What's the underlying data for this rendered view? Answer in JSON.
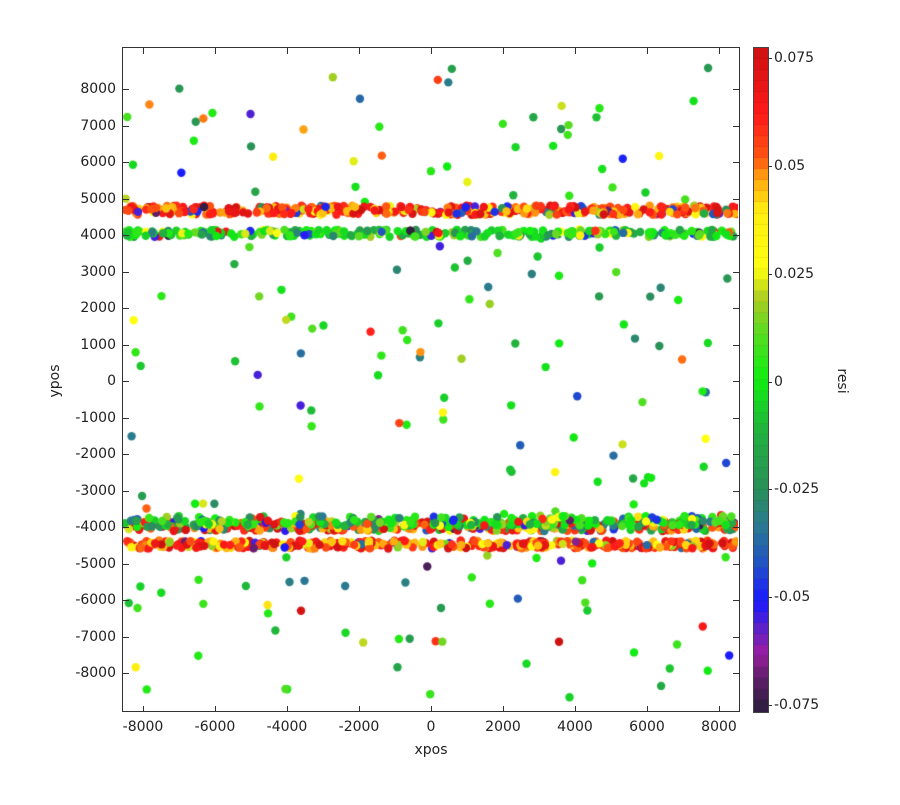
{
  "chart_data": {
    "type": "scatter",
    "title": "",
    "xlabel": "xpos",
    "ylabel": "ypos",
    "colorbar_label": "resi",
    "xlim": [
      -8800,
      8800
    ],
    "ylim": [
      -8900,
      8700
    ],
    "xticks": [
      -8000,
      -6000,
      -4000,
      -2000,
      0,
      2000,
      4000,
      6000,
      8000
    ],
    "yticks": [
      8000,
      7000,
      6000,
      5000,
      4000,
      3000,
      2000,
      1000,
      0,
      -1000,
      -2000,
      -3000,
      -4000,
      -5000,
      -6000,
      -7000,
      -8000
    ],
    "xtick_labels": [
      "-8000",
      "-6000",
      "-4000",
      "-2000",
      "0",
      "2000",
      "4000",
      "6000",
      "8000"
    ],
    "ytick_labels": [
      "8000",
      "7000",
      "6000",
      "5000",
      "4000",
      "3000",
      "2000",
      "1000",
      "0",
      "-1000",
      "-2000",
      "-3000",
      "-4000",
      "-5000",
      "-6000",
      "-7000",
      "-8000"
    ],
    "colorbar": {
      "range": [
        -0.075,
        0.075
      ],
      "ticks": [
        0.075,
        0.05,
        0.025,
        0,
        -0.025,
        -0.05,
        -0.075
      ],
      "tick_labels": [
        "0.075",
        "0.05",
        "0.025",
        "0",
        "-0.025",
        "-0.05",
        "-0.075"
      ],
      "colormap_stops": [
        {
          "v": -0.075,
          "color": "#2a1f3d"
        },
        {
          "v": -0.068,
          "color": "#5a1f66"
        },
        {
          "v": -0.062,
          "color": "#9a1fa0"
        },
        {
          "v": -0.056,
          "color": "#5a22cc"
        },
        {
          "v": -0.05,
          "color": "#1a1aff"
        },
        {
          "v": -0.042,
          "color": "#2050c8"
        },
        {
          "v": -0.033,
          "color": "#2a7a90"
        },
        {
          "v": -0.025,
          "color": "#2a8f5a"
        },
        {
          "v": -0.012,
          "color": "#22b040"
        },
        {
          "v": 0,
          "color": "#11ee11"
        },
        {
          "v": 0.01,
          "color": "#55dd22"
        },
        {
          "v": 0.018,
          "color": "#aacc22"
        },
        {
          "v": 0.025,
          "color": "#ffff11"
        },
        {
          "v": 0.038,
          "color": "#ffee11"
        },
        {
          "v": 0.045,
          "color": "#ffaa11"
        },
        {
          "v": 0.05,
          "color": "#ff5511"
        },
        {
          "v": 0.06,
          "color": "#ff1a1a"
        },
        {
          "v": 0.075,
          "color": "#cc1111"
        }
      ]
    },
    "data_regions": [
      {
        "name": "top-band",
        "x_range": [
          -8500,
          8500
        ],
        "y_range": [
          4600,
          8600
        ],
        "edge_row_y": 4650,
        "edge_row_bias": "positive"
      },
      {
        "name": "middle-band",
        "x_range": [
          -8500,
          8500
        ],
        "y_range": [
          -4100,
          4100
        ],
        "edge_row_y_top": 4050,
        "edge_row_y_bottom": -4050,
        "edge_row_bias": "positive"
      },
      {
        "name": "bottom-band",
        "x_range": [
          -8500,
          8500
        ],
        "y_range": [
          -8700,
          -4400
        ],
        "edge_row_y": -4450,
        "edge_row_bias": "positive"
      }
    ],
    "gaps": [
      {
        "y_range": [
          4150,
          4550
        ]
      },
      {
        "y_range": [
          -4400,
          -4100
        ]
      }
    ],
    "distribution_note": "dense points, residuals mostly near 0 (green), scattered positive (yellow/red) and negative (teal/blue); strong positive (red) row along inner edges of gaps",
    "grid": false,
    "legend": "colorbar-right"
  }
}
